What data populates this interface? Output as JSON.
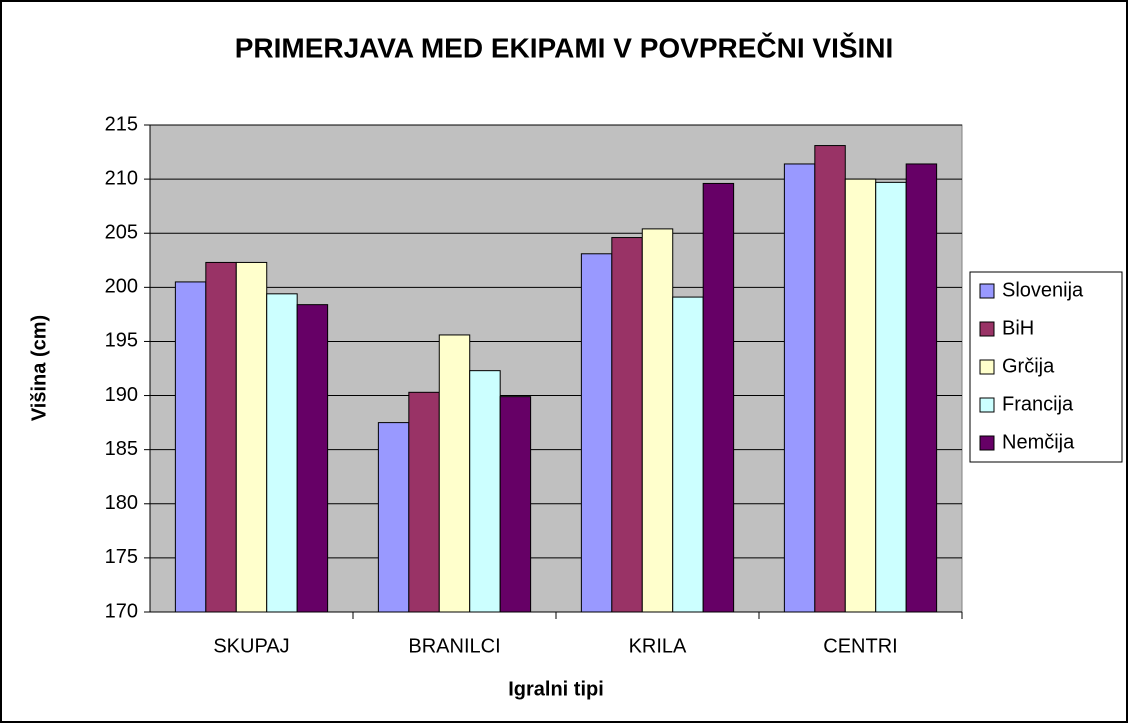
{
  "chart_data": {
    "type": "bar",
    "title": "PRIMERJAVA MED EKIPAMI V POVPREČNI VIŠINI",
    "x_label": "Igralni tipi",
    "y_label": "Višina (cm)",
    "categories": [
      "SKUPAJ",
      "BRANILCI",
      "KRILA",
      "CENTRI"
    ],
    "series": [
      {
        "name": "Slovenija",
        "color": "#9999ff",
        "values": [
          200.5,
          187.5,
          203.1,
          211.4
        ]
      },
      {
        "name": "BiH",
        "color": "#993366",
        "values": [
          202.3,
          190.3,
          204.6,
          213.1
        ]
      },
      {
        "name": "Grčija",
        "color": "#ffffcc",
        "values": [
          202.3,
          195.6,
          205.4,
          210.0
        ]
      },
      {
        "name": "Francija",
        "color": "#ccffff",
        "values": [
          199.4,
          192.3,
          199.1,
          209.7
        ]
      },
      {
        "name": "Nemčija",
        "color": "#660066",
        "values": [
          198.4,
          189.9,
          209.6,
          211.4
        ]
      }
    ],
    "ylim": [
      170,
      215
    ],
    "yticks": [
      170,
      175,
      180,
      185,
      190,
      195,
      200,
      205,
      210,
      215
    ],
    "grid": true,
    "legend": "right"
  }
}
